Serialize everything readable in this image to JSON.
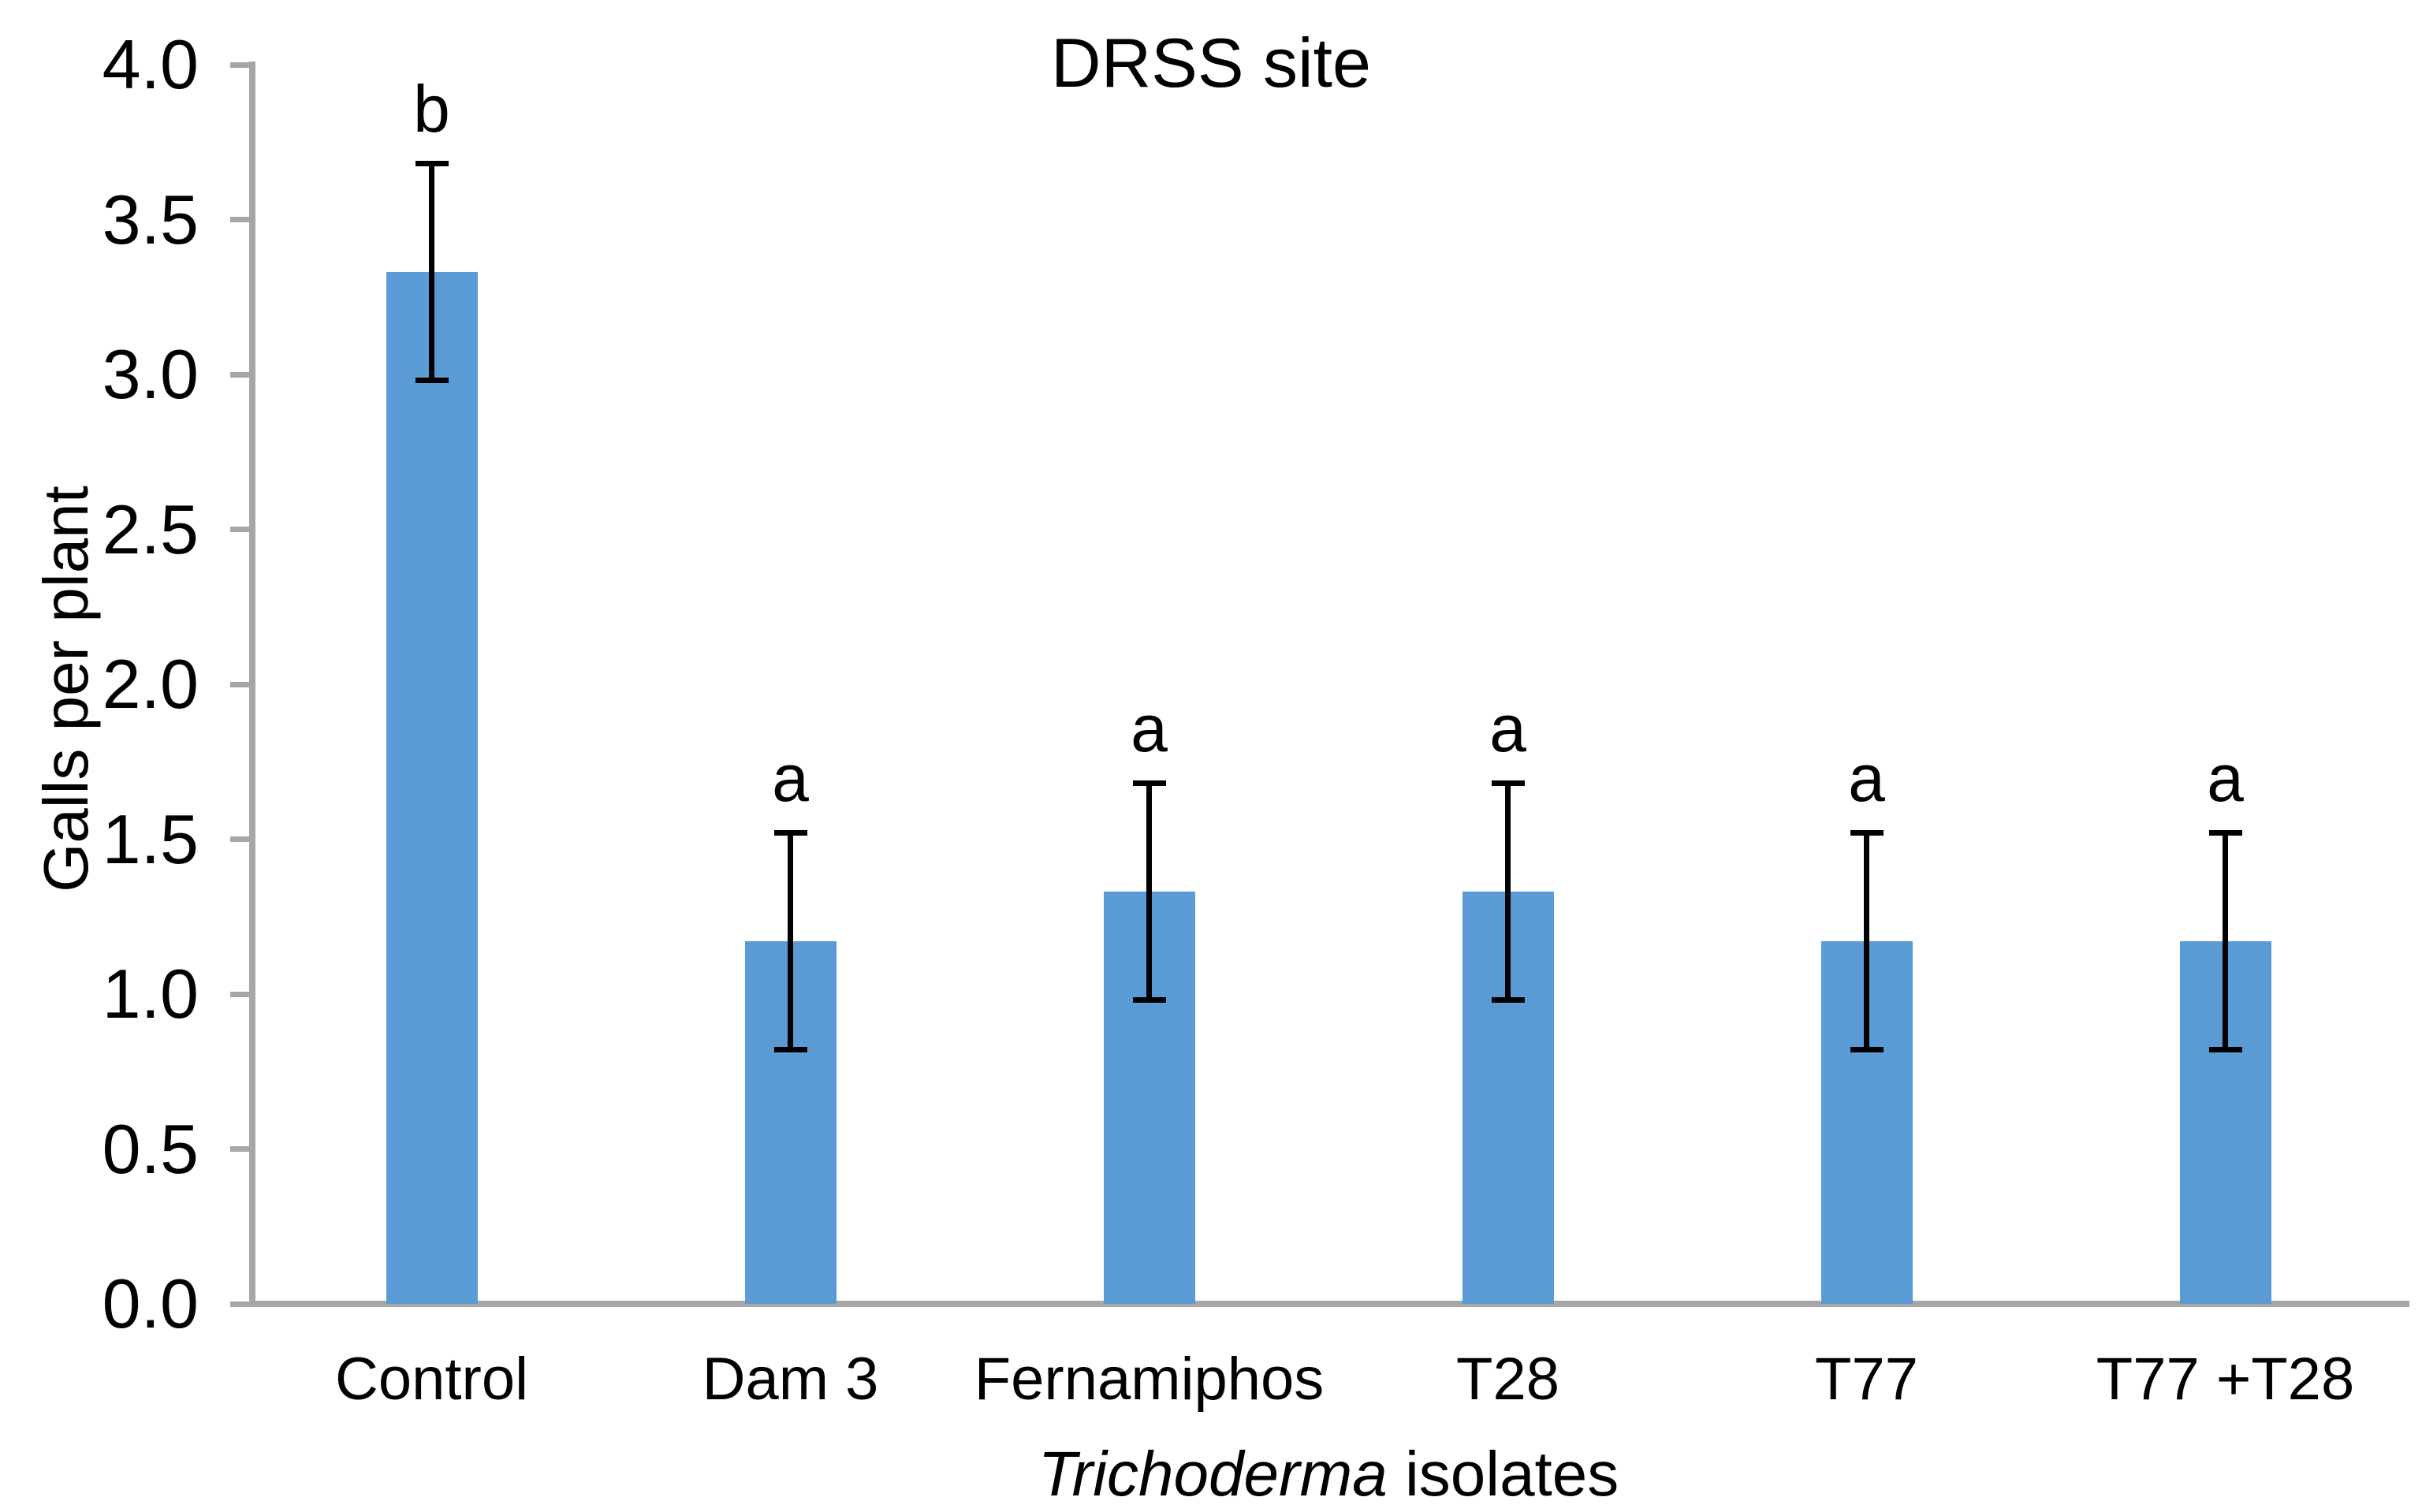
{
  "chart_data": {
    "type": "bar",
    "title": "DRSS site",
    "categories": [
      "Control",
      "Dam 3",
      "Fernamiphos",
      "T28",
      "T77",
      "T77 +T28"
    ],
    "values": [
      3.33,
      1.17,
      1.33,
      1.33,
      1.17,
      1.17
    ],
    "error_bars": [
      0.35,
      0.35,
      0.35,
      0.35,
      0.35,
      0.35
    ],
    "error_upper": [
      3.68,
      1.52,
      1.68,
      1.68,
      1.52,
      1.52
    ],
    "error_lower": [
      2.98,
      0.82,
      0.98,
      0.98,
      0.82,
      0.82
    ],
    "significance_letters": [
      "b",
      "a",
      "a",
      "a",
      "a",
      "a"
    ],
    "ylabel": "Galls per plant",
    "xlabel": "Trichoderma isolates",
    "xlabel_parts": {
      "italic": "Trichoderma",
      "regular": " isolates"
    },
    "ylim": [
      0,
      4
    ],
    "ytick_step": 0.5,
    "ytick_labels": [
      "0.0",
      "0.5",
      "1.0",
      "1.5",
      "2.0",
      "2.5",
      "3.0",
      "3.5",
      "4.0"
    ],
    "grid": false,
    "legend": "none",
    "bar_color": "#5B9BD5",
    "axis_color": "#A6A6A6",
    "error_bar_color": "#000000",
    "text_color": "#000000"
  }
}
